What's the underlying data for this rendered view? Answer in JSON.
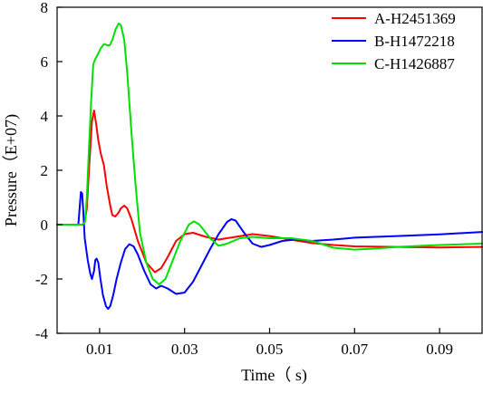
{
  "chart_data": {
    "type": "line",
    "title": "",
    "xlabel": "Time（ s)",
    "ylabel": "Pressure（E+07)",
    "xlim": [
      0,
      0.1
    ],
    "ylim": [
      -4,
      8
    ],
    "xticks": [
      0.01,
      0.03,
      0.05,
      0.07,
      0.09
    ],
    "xtick_labels": [
      "0.01",
      "0.03",
      "0.05",
      "0.07",
      "0.09"
    ],
    "yticks": [
      -4,
      -2,
      0,
      2,
      4,
      6,
      8
    ],
    "ytick_labels": [
      "-4",
      "-2",
      "0",
      "2",
      "4",
      "6",
      "8"
    ],
    "grid": false,
    "legend_position": "top-right",
    "series": [
      {
        "name": "A-H2451369",
        "color": "#ff0000",
        "points": [
          [
            0,
            0
          ],
          [
            0.006,
            0
          ],
          [
            0.0065,
            0.1
          ],
          [
            0.007,
            0.6
          ],
          [
            0.0075,
            2.0
          ],
          [
            0.0082,
            3.8
          ],
          [
            0.0087,
            4.2
          ],
          [
            0.0092,
            3.7
          ],
          [
            0.0097,
            3.1
          ],
          [
            0.0103,
            2.6
          ],
          [
            0.011,
            2.2
          ],
          [
            0.0117,
            1.4
          ],
          [
            0.0125,
            0.7
          ],
          [
            0.013,
            0.35
          ],
          [
            0.0137,
            0.3
          ],
          [
            0.0145,
            0.45
          ],
          [
            0.015,
            0.6
          ],
          [
            0.0158,
            0.7
          ],
          [
            0.0165,
            0.6
          ],
          [
            0.0175,
            0.2
          ],
          [
            0.019,
            -0.6
          ],
          [
            0.021,
            -1.4
          ],
          [
            0.023,
            -1.75
          ],
          [
            0.0245,
            -1.6
          ],
          [
            0.026,
            -1.2
          ],
          [
            0.028,
            -0.6
          ],
          [
            0.03,
            -0.35
          ],
          [
            0.032,
            -0.3
          ],
          [
            0.035,
            -0.45
          ],
          [
            0.038,
            -0.55
          ],
          [
            0.042,
            -0.45
          ],
          [
            0.046,
            -0.35
          ],
          [
            0.05,
            -0.42
          ],
          [
            0.055,
            -0.55
          ],
          [
            0.06,
            -0.68
          ],
          [
            0.065,
            -0.75
          ],
          [
            0.07,
            -0.8
          ],
          [
            0.08,
            -0.82
          ],
          [
            0.09,
            -0.84
          ],
          [
            0.1,
            -0.82
          ]
        ]
      },
      {
        "name": "B-H1472218",
        "color": "#0000ff",
        "points": [
          [
            0,
            0
          ],
          [
            0.005,
            0
          ],
          [
            0.0053,
            0.6
          ],
          [
            0.0056,
            1.2
          ],
          [
            0.0059,
            1.15
          ],
          [
            0.0062,
            0.4
          ],
          [
            0.0065,
            -0.5
          ],
          [
            0.0072,
            -1.3
          ],
          [
            0.0078,
            -1.8
          ],
          [
            0.0082,
            -2.0
          ],
          [
            0.0087,
            -1.7
          ],
          [
            0.009,
            -1.3
          ],
          [
            0.0093,
            -1.25
          ],
          [
            0.0097,
            -1.4
          ],
          [
            0.0102,
            -2.0
          ],
          [
            0.0108,
            -2.6
          ],
          [
            0.0115,
            -3.0
          ],
          [
            0.012,
            -3.1
          ],
          [
            0.0125,
            -3.0
          ],
          [
            0.0132,
            -2.6
          ],
          [
            0.014,
            -2.0
          ],
          [
            0.015,
            -1.4
          ],
          [
            0.016,
            -0.9
          ],
          [
            0.017,
            -0.72
          ],
          [
            0.018,
            -0.8
          ],
          [
            0.019,
            -1.1
          ],
          [
            0.0205,
            -1.7
          ],
          [
            0.022,
            -2.2
          ],
          [
            0.0233,
            -2.35
          ],
          [
            0.0245,
            -2.25
          ],
          [
            0.026,
            -2.35
          ],
          [
            0.028,
            -2.55
          ],
          [
            0.03,
            -2.5
          ],
          [
            0.032,
            -2.1
          ],
          [
            0.034,
            -1.5
          ],
          [
            0.036,
            -0.9
          ],
          [
            0.038,
            -0.35
          ],
          [
            0.04,
            0.1
          ],
          [
            0.041,
            0.2
          ],
          [
            0.042,
            0.15
          ],
          [
            0.044,
            -0.3
          ],
          [
            0.046,
            -0.7
          ],
          [
            0.048,
            -0.82
          ],
          [
            0.05,
            -0.75
          ],
          [
            0.053,
            -0.6
          ],
          [
            0.056,
            -0.55
          ],
          [
            0.06,
            -0.6
          ],
          [
            0.065,
            -0.55
          ],
          [
            0.07,
            -0.48
          ],
          [
            0.08,
            -0.42
          ],
          [
            0.09,
            -0.36
          ],
          [
            0.1,
            -0.27
          ]
        ]
      },
      {
        "name": "C-H1426887",
        "color": "#00e000",
        "points": [
          [
            0,
            0
          ],
          [
            0.006,
            0
          ],
          [
            0.0066,
            0.1
          ],
          [
            0.007,
            1.0
          ],
          [
            0.0075,
            2.8
          ],
          [
            0.008,
            4.5
          ],
          [
            0.0085,
            5.9
          ],
          [
            0.009,
            6.1
          ],
          [
            0.0097,
            6.3
          ],
          [
            0.0103,
            6.5
          ],
          [
            0.0111,
            6.65
          ],
          [
            0.0118,
            6.6
          ],
          [
            0.0124,
            6.6
          ],
          [
            0.013,
            6.8
          ],
          [
            0.0138,
            7.2
          ],
          [
            0.0145,
            7.4
          ],
          [
            0.015,
            7.35
          ],
          [
            0.0158,
            6.8
          ],
          [
            0.0165,
            5.6
          ],
          [
            0.0175,
            3.4
          ],
          [
            0.0185,
            1.4
          ],
          [
            0.0195,
            -0.3
          ],
          [
            0.021,
            -1.4
          ],
          [
            0.0225,
            -2.0
          ],
          [
            0.024,
            -2.2
          ],
          [
            0.0255,
            -2.0
          ],
          [
            0.027,
            -1.4
          ],
          [
            0.029,
            -0.6
          ],
          [
            0.031,
            0.0
          ],
          [
            0.0322,
            0.12
          ],
          [
            0.0335,
            0.0
          ],
          [
            0.036,
            -0.5
          ],
          [
            0.038,
            -0.78
          ],
          [
            0.04,
            -0.7
          ],
          [
            0.043,
            -0.5
          ],
          [
            0.046,
            -0.45
          ],
          [
            0.05,
            -0.5
          ],
          [
            0.055,
            -0.5
          ],
          [
            0.06,
            -0.6
          ],
          [
            0.065,
            -0.85
          ],
          [
            0.07,
            -0.92
          ],
          [
            0.075,
            -0.88
          ],
          [
            0.08,
            -0.82
          ],
          [
            0.09,
            -0.75
          ],
          [
            0.1,
            -0.7
          ]
        ]
      }
    ]
  }
}
